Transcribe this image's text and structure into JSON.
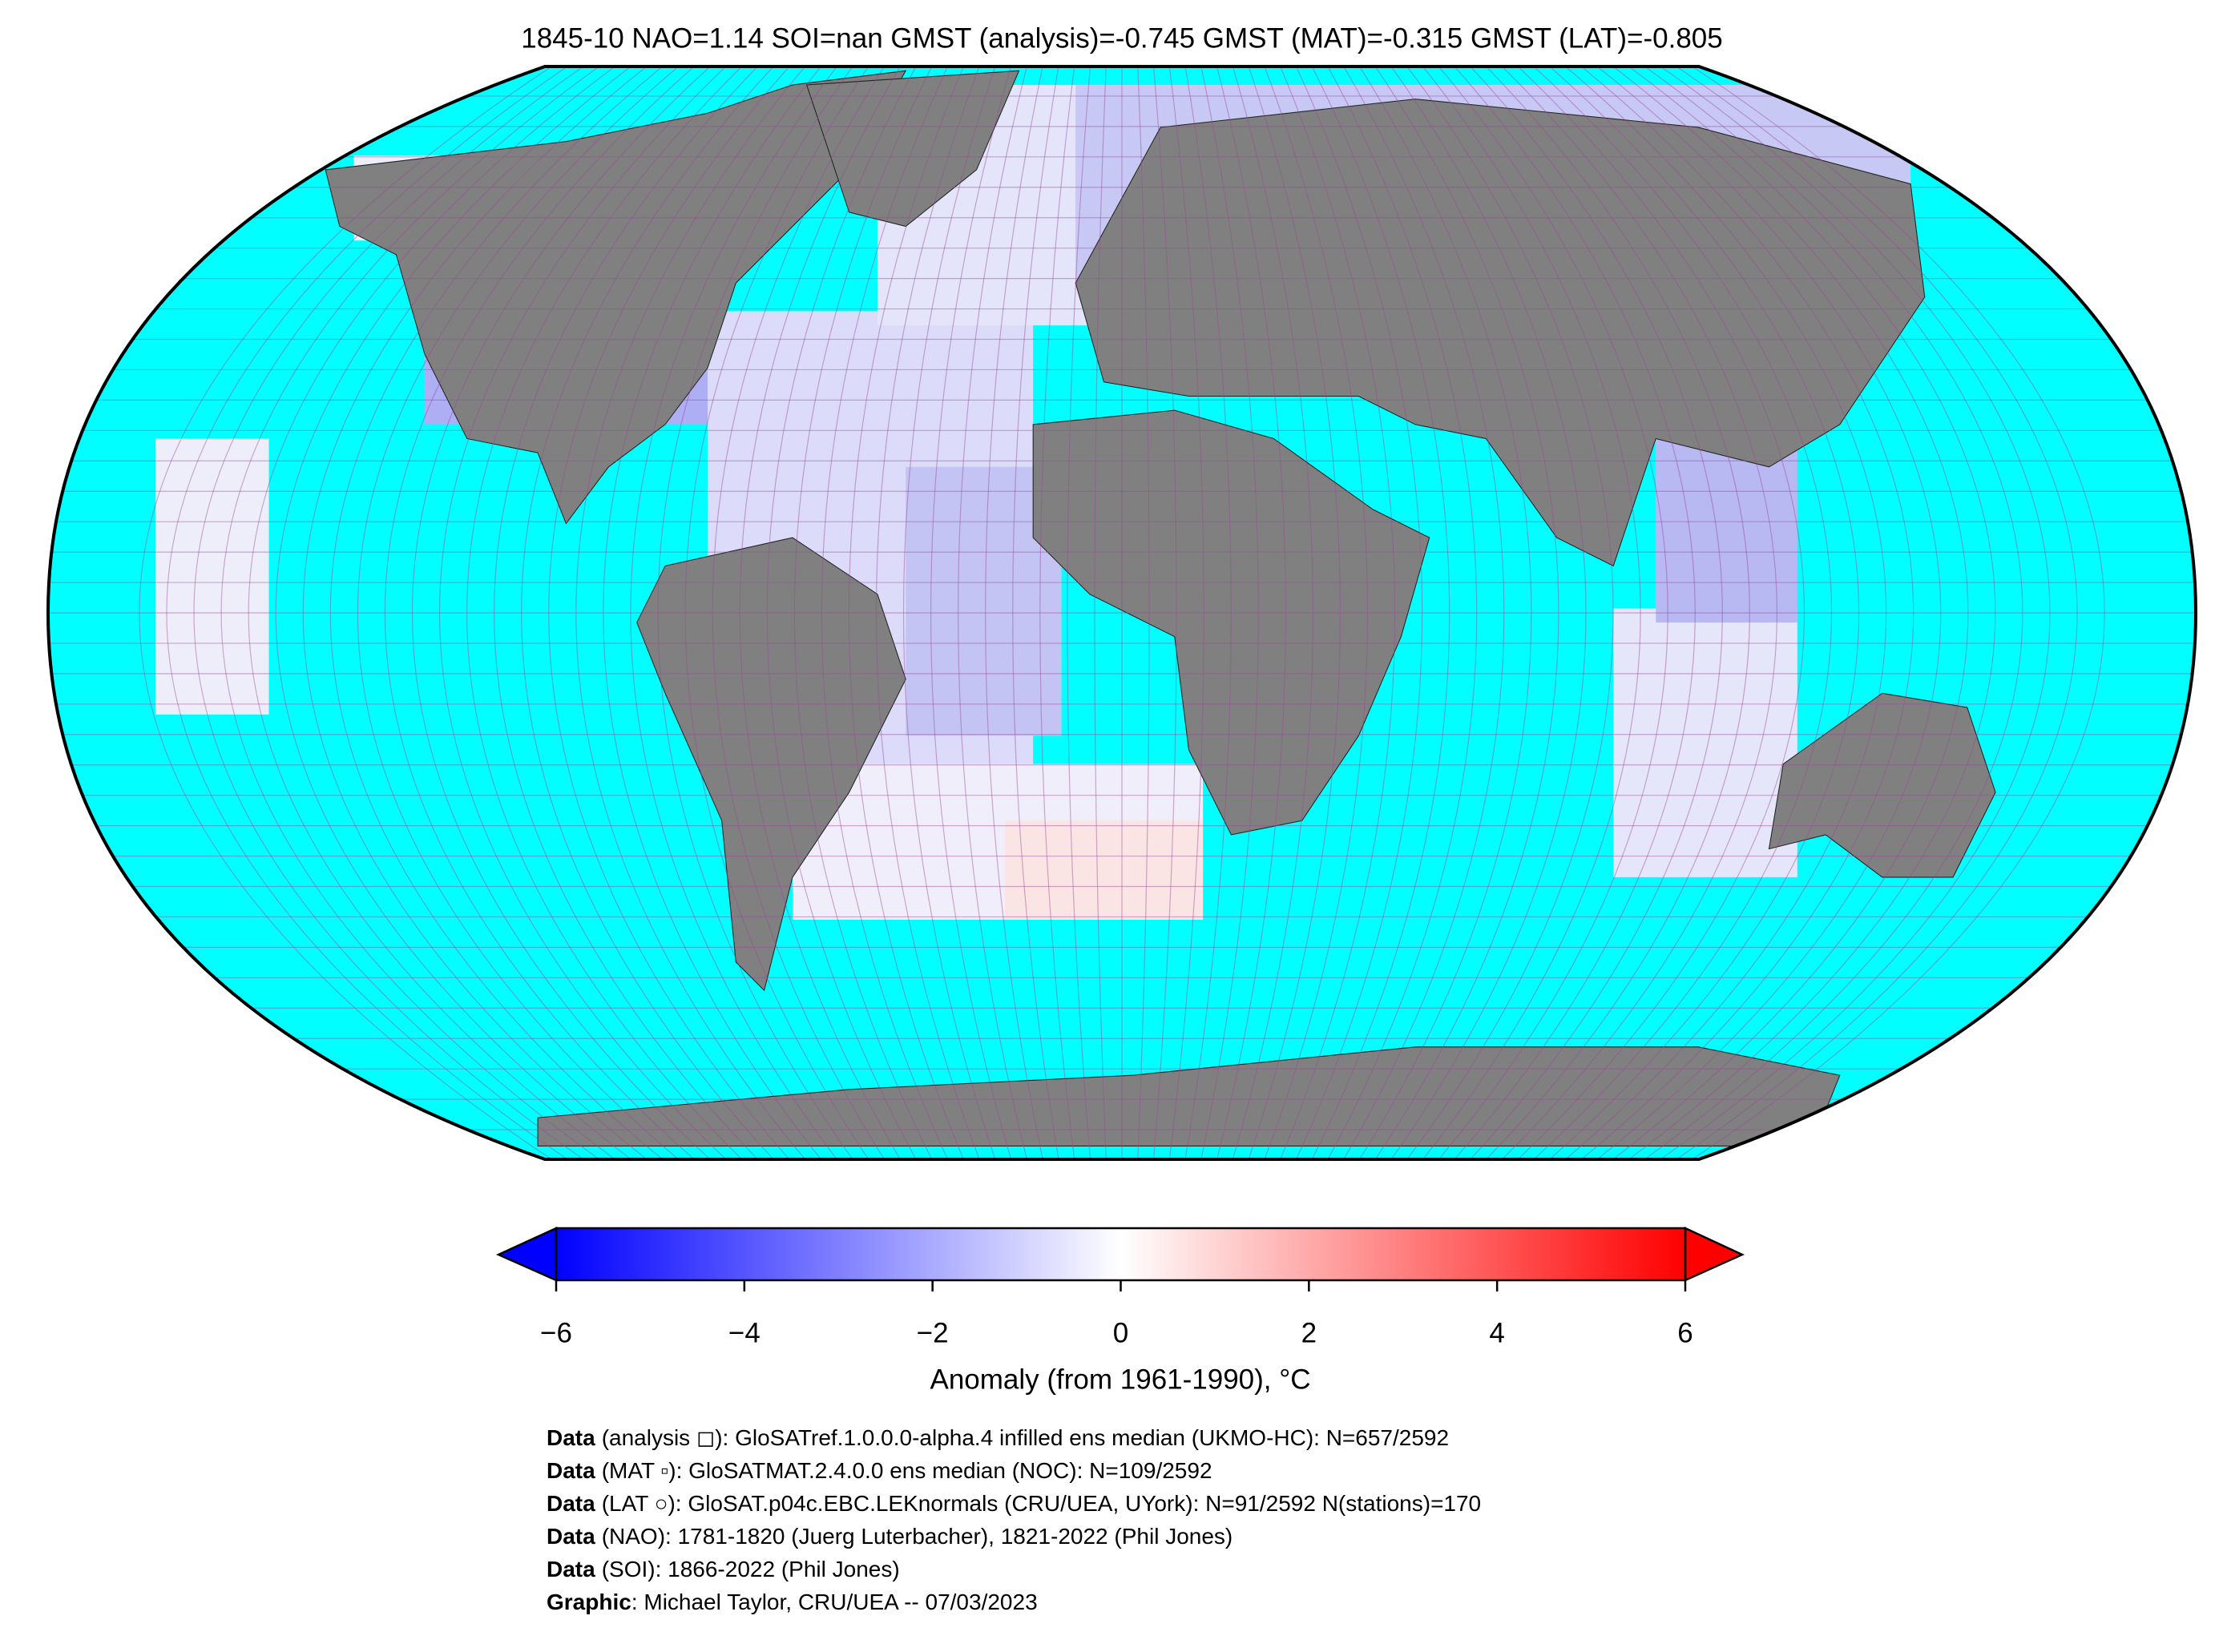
{
  "title": "1845-10 NAO=1.14 SOI=nan GMST (analysis)=-0.745 GMST (MAT)=-0.315 GMST (LAT)=-0.805",
  "colorbar": {
    "lim": [
      -6,
      6
    ],
    "ticks": [
      {
        "value": -6,
        "label": "−6"
      },
      {
        "value": -4,
        "label": "−4"
      },
      {
        "value": -2,
        "label": "−2"
      },
      0,
      2,
      4,
      6
    ],
    "label": "Anomaly (from 1961-1990), °C"
  },
  "credits": [
    {
      "bold": "Data",
      "text": "(analysis ◻): GloSATref.1.0.0.0-alpha.4 infilled ens median (UKMO-HC): N=657/2592"
    },
    {
      "bold": "Data",
      "text": "(MAT ▫): GloSATMAT.2.4.0.0 ens median (NOC): N=109/2592"
    },
    {
      "bold": "Data",
      "text": "(LAT ○): GloSAT.p04c.EBC.LEKnormals (CRU/UEA, UYork): N=91/2592 N(stations)=170"
    },
    {
      "bold": "Data",
      "text": "(NAO): 1781-1820 (Juerg Luterbacher), 1821-2022 (Phil Jones)"
    },
    {
      "bold": "Data",
      "text": "(SOI): 1866-2022 (Phil Jones)"
    },
    {
      "bold": "Graphic",
      "text": ": Michael Taylor, CRU/UEA -- 07/03/2023"
    }
  ]
}
